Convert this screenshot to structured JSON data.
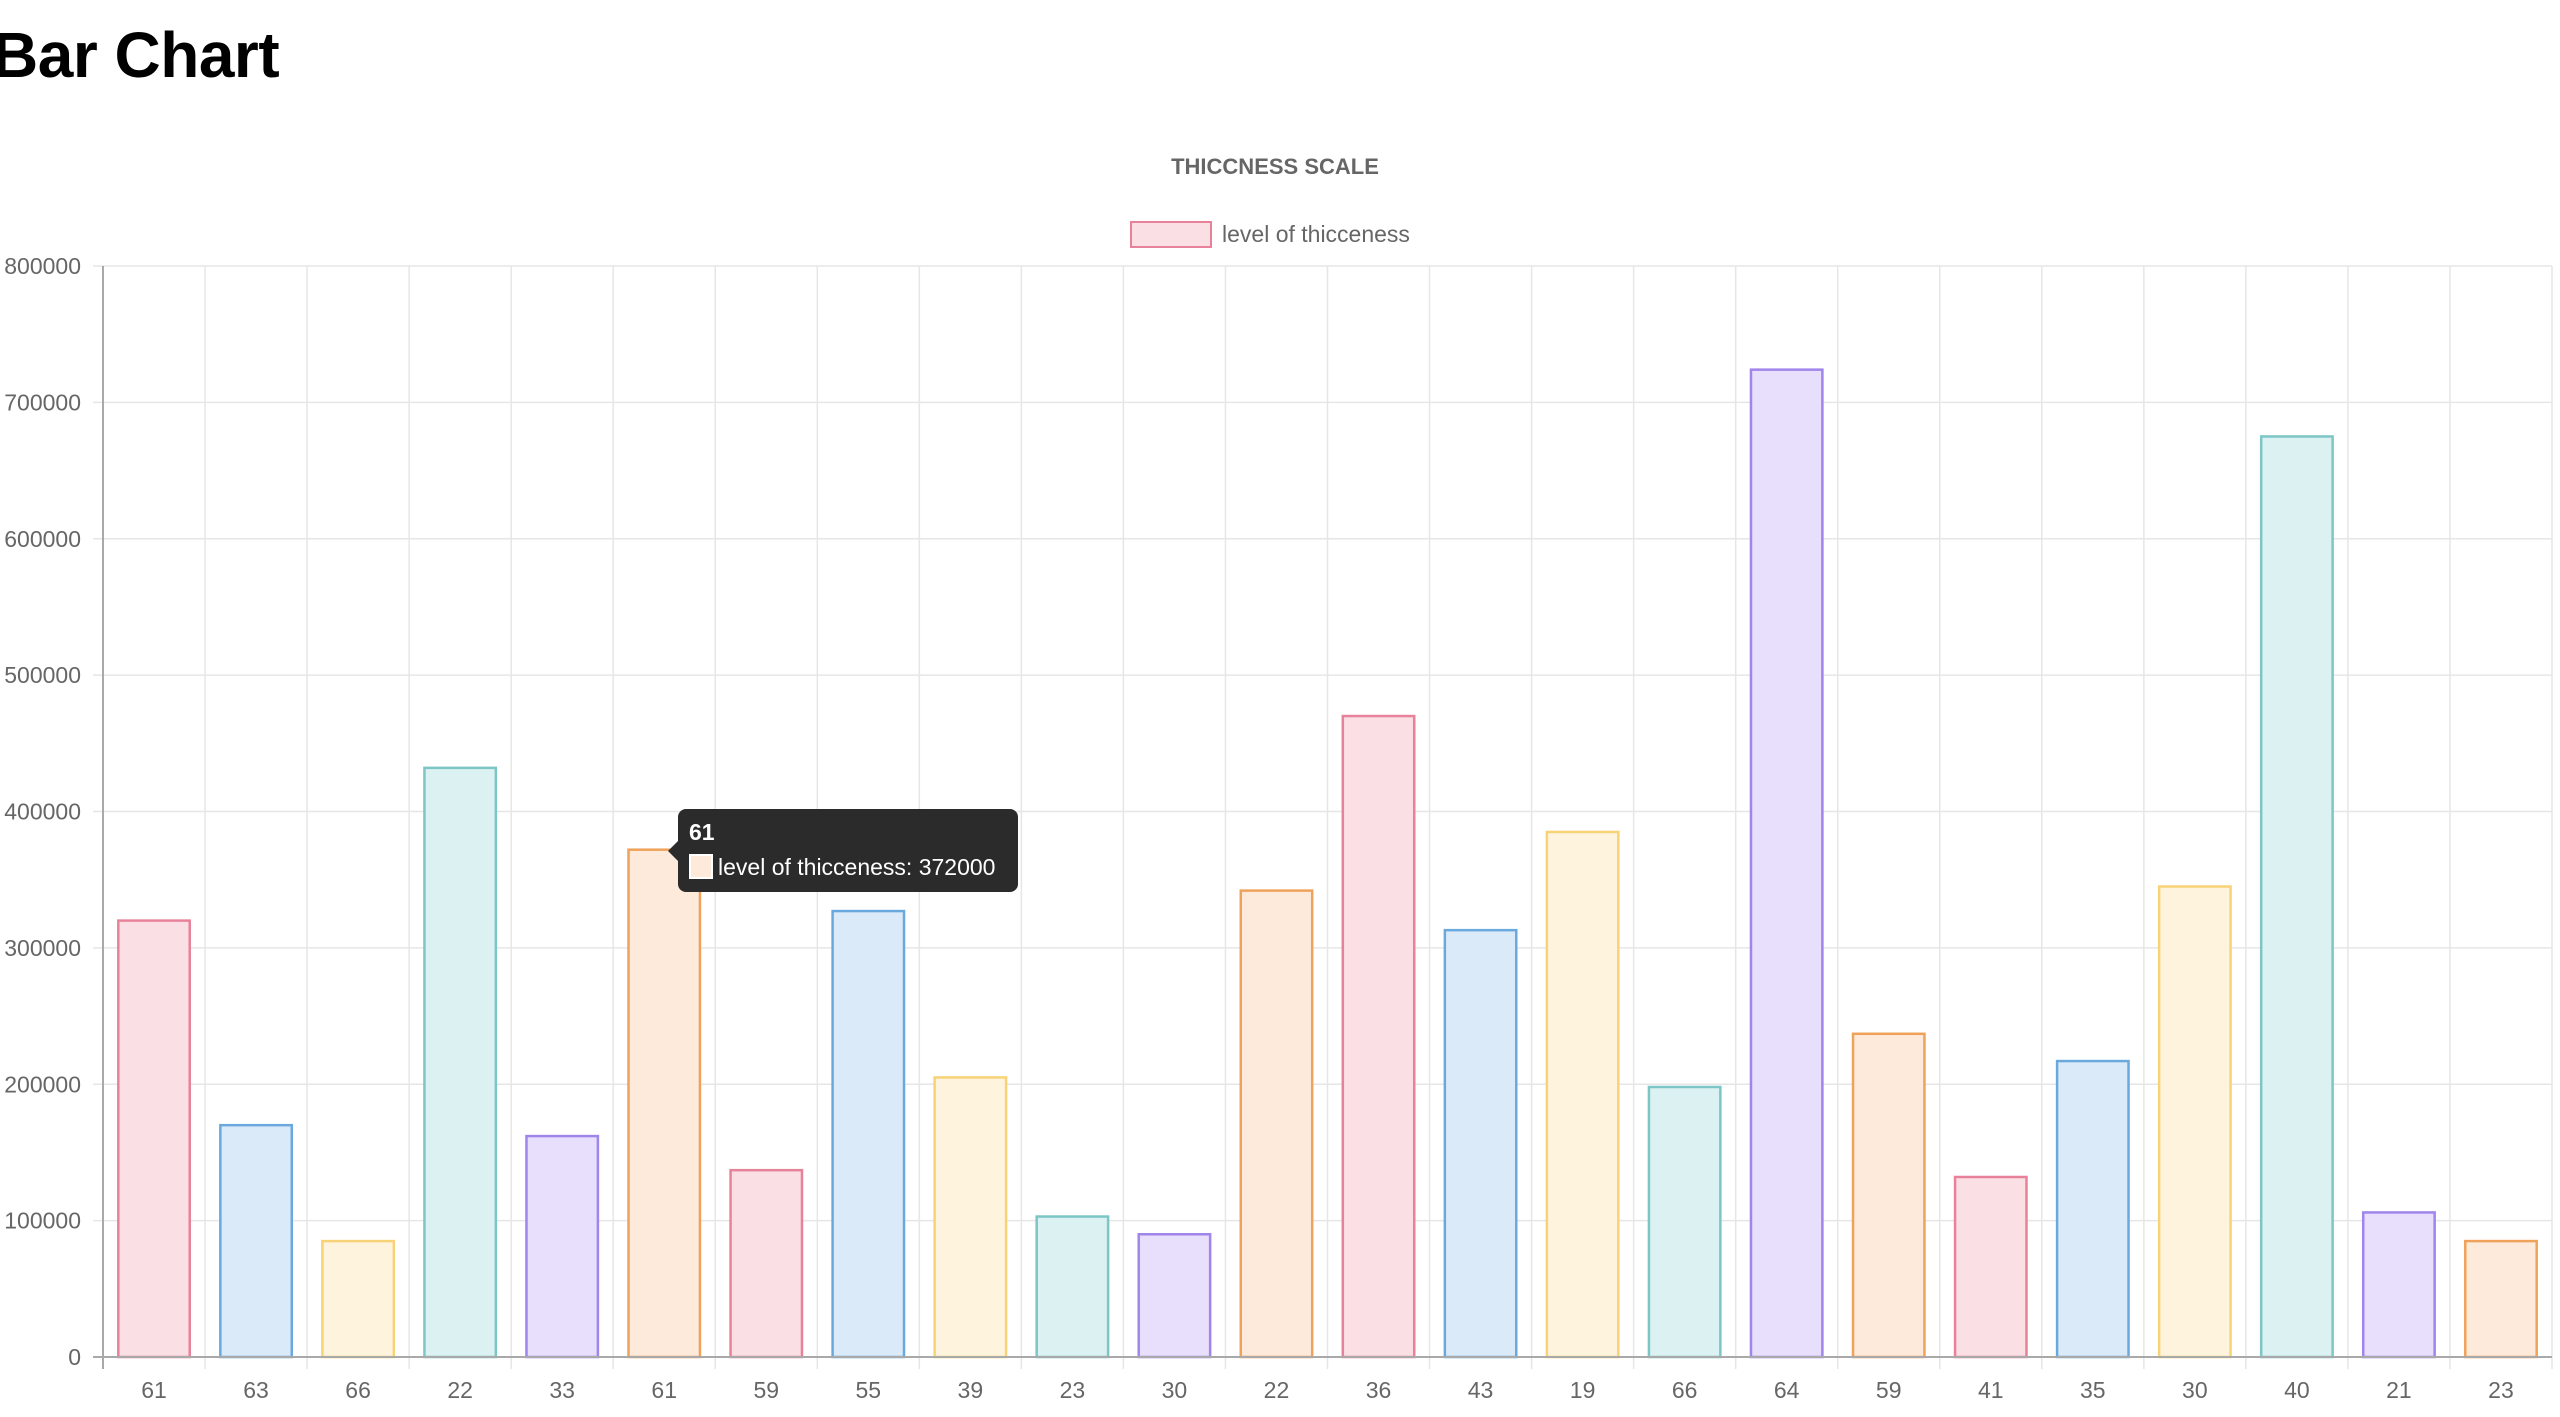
{
  "page": {
    "heading": "Bar Chart"
  },
  "chart_data": {
    "type": "bar",
    "title": "THICCNESS SCALE",
    "xlabel": "",
    "ylabel": "",
    "ylim": [
      0,
      800000
    ],
    "y_ticks": [
      0,
      100000,
      200000,
      300000,
      400000,
      500000,
      600000,
      700000,
      800000
    ],
    "grid": true,
    "legend_position": "top",
    "categories": [
      "61",
      "63",
      "66",
      "22",
      "33",
      "61",
      "59",
      "55",
      "39",
      "23",
      "30",
      "22",
      "36",
      "43",
      "19",
      "66",
      "64",
      "59",
      "41",
      "35",
      "30",
      "40",
      "21",
      "23"
    ],
    "series": [
      {
        "name": "level of thicceness",
        "values": [
          320000,
          170000,
          85000,
          432000,
          162000,
          372000,
          137000,
          327000,
          205000,
          103000,
          90000,
          342000,
          470000,
          313000,
          385000,
          198000,
          724000,
          237000,
          132000,
          217000,
          345000,
          675000,
          106000,
          85000
        ]
      }
    ],
    "colors": {
      "fills": [
        "#fadfe4",
        "#dbeaf9",
        "#fef4de",
        "#dcf1f1",
        "#e7dffb",
        "#fdeadb"
      ],
      "borders": [
        "#e8829a",
        "#6aa9de",
        "#f8d277",
        "#7cc6c6",
        "#a085ea",
        "#efa25a"
      ],
      "legend_fill": "#fadfe4",
      "legend_border": "#e8829a",
      "grid": "#e6e6e6",
      "axis": "#a9a9a9",
      "text": "#666666",
      "tooltip_bg": "#2b2b2b"
    },
    "tooltip": {
      "title": "61",
      "label": "level of thicceness: 372000",
      "category_index": 5
    }
  }
}
